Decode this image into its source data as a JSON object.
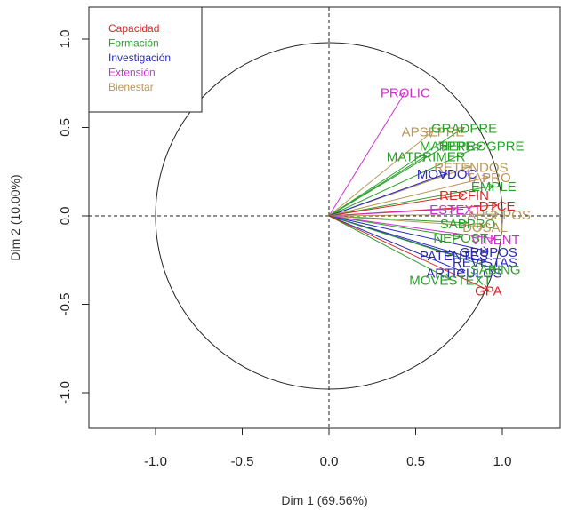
{
  "chart_data": {
    "type": "scatter",
    "subtype": "pca-variables-factor-map",
    "xlabel": "Dim 1 (69.56%)",
    "ylabel": "Dim 2 (10.00%)",
    "xlim": [
      -1.38,
      1.32
    ],
    "ylim": [
      -1.2,
      1.2
    ],
    "x_ticks": [
      "-1.0",
      "-0.5",
      "0.0",
      "0.5",
      "1.0"
    ],
    "y_ticks": [
      "-1.0",
      "-0.5",
      "0.0",
      "0.5",
      "1.0"
    ],
    "unit_circle": true,
    "reference_lines": "dashed at 0",
    "legend_placement": "top-left",
    "groups": [
      {
        "name": "Capacidad",
        "color": "#d62728"
      },
      {
        "name": "Formación",
        "color": "#2ca02c"
      },
      {
        "name": "Investigación",
        "color": "#2b2bb8"
      },
      {
        "name": "Extensión",
        "color": "#cc33cc"
      },
      {
        "name": "Bienestar",
        "color": "#b8975a"
      }
    ],
    "variables": [
      {
        "name": "PROLIC",
        "group": "Extensión",
        "x": 0.44,
        "y": 0.7
      },
      {
        "name": "APSEPRE",
        "group": "Bienestar",
        "x": 0.6,
        "y": 0.48
      },
      {
        "name": "GRADPRE",
        "group": "Formación",
        "x": 0.78,
        "y": 0.5
      },
      {
        "name": "MATPRE",
        "group": "Formación",
        "x": 0.68,
        "y": 0.4
      },
      {
        "name": "NEPROGPRE",
        "group": "Formación",
        "x": 0.88,
        "y": 0.4
      },
      {
        "name": "MATPRIMER",
        "group": "Formación",
        "x": 0.56,
        "y": 0.34
      },
      {
        "name": "RETENDOS",
        "group": "Bienestar",
        "x": 0.82,
        "y": 0.28
      },
      {
        "name": "MOVDOC",
        "group": "Investigación",
        "x": 0.68,
        "y": 0.24
      },
      {
        "name": "TAPRO",
        "group": "Bienestar",
        "x": 0.92,
        "y": 0.22
      },
      {
        "name": "EMPLE",
        "group": "Formación",
        "x": 0.95,
        "y": 0.17
      },
      {
        "name": "RECFIN",
        "group": "Capacidad",
        "x": 0.78,
        "y": 0.12
      },
      {
        "name": "DTCE",
        "group": "Capacidad",
        "x": 0.97,
        "y": 0.06
      },
      {
        "name": "ESTEXT",
        "group": "Extensión",
        "x": 0.73,
        "y": 0.04
      },
      {
        "name": "APSEPOS",
        "group": "Bienestar",
        "x": 0.98,
        "y": 0.01
      },
      {
        "name": "SABPRO",
        "group": "Formación",
        "x": 0.8,
        "y": -0.04
      },
      {
        "name": "DOSAL",
        "group": "Bienestar",
        "x": 0.9,
        "y": -0.06
      },
      {
        "name": "NEPOST",
        "group": "Formación",
        "x": 0.76,
        "y": -0.12
      },
      {
        "name": "VINENT",
        "group": "Extensión",
        "x": 0.96,
        "y": -0.13
      },
      {
        "name": "GRUPOS",
        "group": "Investigación",
        "x": 0.92,
        "y": -0.2
      },
      {
        "name": "PATENTES",
        "group": "Investigación",
        "x": 0.72,
        "y": -0.22
      },
      {
        "name": "REVISTAS",
        "group": "Investigación",
        "x": 0.9,
        "y": -0.26
      },
      {
        "name": "ARTICULOS",
        "group": "Investigación",
        "x": 0.78,
        "y": -0.32
      },
      {
        "name": "SABING",
        "group": "Formación",
        "x": 0.96,
        "y": -0.3
      },
      {
        "name": "MOVESTEXT",
        "group": "Formación",
        "x": 0.7,
        "y": -0.36
      },
      {
        "name": "GPA",
        "group": "Capacidad",
        "x": 0.92,
        "y": -0.42
      }
    ]
  }
}
